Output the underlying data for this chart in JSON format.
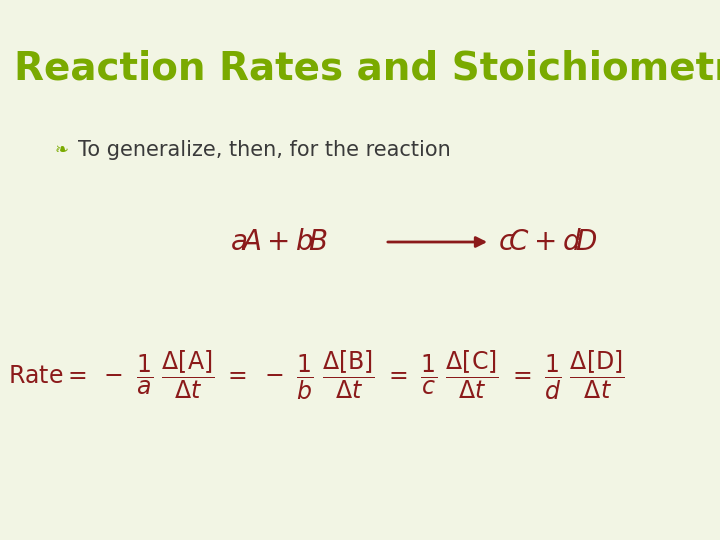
{
  "background_color": "#f2f5e4",
  "title": "Reaction Rates and Stoichiometry",
  "title_color": "#7aaa00",
  "title_fontsize": 28,
  "bullet_color": "#3a3a3a",
  "bullet_fontsize": 15,
  "reaction_color": "#8b1a1a",
  "equation_color": "#8b1a1a",
  "fig_width": 7.2,
  "fig_height": 5.4,
  "dpi": 100
}
